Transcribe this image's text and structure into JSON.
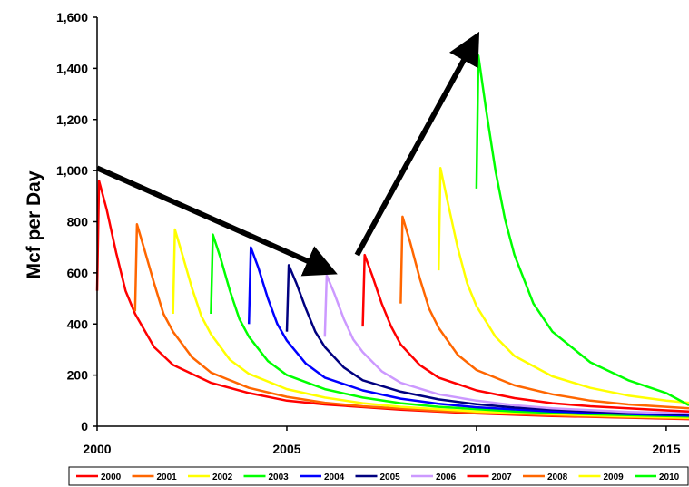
{
  "chart_data": {
    "type": "line",
    "title": "",
    "xlabel": "",
    "ylabel": "Mcf per Day",
    "xlim": [
      2000,
      2015.6
    ],
    "ylim": [
      0,
      1600
    ],
    "x_ticks": [
      2000,
      2005,
      2010,
      2015
    ],
    "x_tick_labels": [
      "2000",
      "2005",
      "2010",
      "2015"
    ],
    "y_ticks": [
      0,
      200,
      400,
      600,
      800,
      1000,
      1200,
      1400,
      1600
    ],
    "y_tick_labels": [
      "0",
      "200",
      "400",
      "600",
      "800",
      "1,000",
      "1,200",
      "1,400",
      "1,600"
    ],
    "grid": false,
    "legend_position": "bottom",
    "x_unit": "years",
    "series": [
      {
        "name": "2000",
        "color": "#ff0000",
        "start_year": 2000.0,
        "x_offset": [
          0,
          0.05,
          0.25,
          0.5,
          0.75,
          1.0,
          1.5,
          2.0,
          3.0,
          4.0,
          5.0,
          6.0,
          8.0,
          10.0,
          12.0,
          15.6
        ],
        "values": [
          530,
          960,
          850,
          680,
          530,
          440,
          310,
          240,
          170,
          130,
          100,
          85,
          65,
          50,
          40,
          28
        ]
      },
      {
        "name": "2001",
        "color": "#ff6600",
        "start_year": 2001.0,
        "x_offset": [
          0,
          0.05,
          0.25,
          0.5,
          0.75,
          1.0,
          1.5,
          2.0,
          3.0,
          4.0,
          5.0,
          6.0,
          8.0,
          10.0,
          12.0,
          14.6
        ],
        "values": [
          450,
          790,
          690,
          560,
          440,
          370,
          270,
          210,
          150,
          115,
          92,
          78,
          60,
          48,
          38,
          30
        ]
      },
      {
        "name": "2002",
        "color": "#ffff00",
        "start_year": 2002.0,
        "x_offset": [
          0,
          0.05,
          0.25,
          0.5,
          0.75,
          1.0,
          1.5,
          2.0,
          3.0,
          4.0,
          5.0,
          6.0,
          8.0,
          10.0,
          12.0,
          13.6
        ],
        "values": [
          440,
          770,
          670,
          540,
          430,
          360,
          260,
          205,
          145,
          112,
          90,
          76,
          58,
          47,
          38,
          33
        ]
      },
      {
        "name": "2003",
        "color": "#00ff00",
        "start_year": 2003.0,
        "x_offset": [
          0,
          0.05,
          0.25,
          0.5,
          0.75,
          1.0,
          1.5,
          2.0,
          3.0,
          4.0,
          5.0,
          6.0,
          8.0,
          10.0,
          12.0,
          12.6
        ],
        "values": [
          440,
          750,
          660,
          530,
          420,
          350,
          255,
          200,
          145,
          112,
          90,
          76,
          58,
          47,
          40,
          38
        ]
      },
      {
        "name": "2004",
        "color": "#0000ff",
        "start_year": 2004.0,
        "x_offset": [
          0,
          0.05,
          0.25,
          0.5,
          0.75,
          1.0,
          1.5,
          2.0,
          3.0,
          4.0,
          5.0,
          6.0,
          8.0,
          10.0,
          11.6
        ],
        "values": [
          400,
          700,
          620,
          500,
          400,
          335,
          245,
          190,
          140,
          108,
          88,
          74,
          58,
          48,
          42
        ]
      },
      {
        "name": "2005",
        "color": "#000080",
        "start_year": 2005.0,
        "x_offset": [
          0,
          0.05,
          0.25,
          0.5,
          0.75,
          1.0,
          1.5,
          2.0,
          3.0,
          4.0,
          5.0,
          6.0,
          8.0,
          10.0,
          10.6
        ],
        "values": [
          370,
          630,
          560,
          460,
          370,
          310,
          230,
          180,
          135,
          105,
          86,
          73,
          58,
          48,
          46
        ]
      },
      {
        "name": "2006",
        "color": "#cc99ff",
        "start_year": 2006.0,
        "x_offset": [
          0,
          0.05,
          0.25,
          0.5,
          0.75,
          1.0,
          1.5,
          2.0,
          3.0,
          4.0,
          5.0,
          6.0,
          8.0,
          9.6
        ],
        "values": [
          350,
          590,
          520,
          420,
          340,
          290,
          215,
          170,
          125,
          100,
          82,
          70,
          56,
          50
        ]
      },
      {
        "name": "2007",
        "color": "#ff0000",
        "start_year": 2007.0,
        "x_offset": [
          0,
          0.05,
          0.25,
          0.5,
          0.75,
          1.0,
          1.5,
          2.0,
          3.0,
          4.0,
          5.0,
          6.0,
          8.0,
          8.6
        ],
        "values": [
          390,
          670,
          590,
          480,
          390,
          320,
          240,
          190,
          140,
          110,
          90,
          78,
          62,
          58
        ]
      },
      {
        "name": "2008",
        "color": "#ff6600",
        "start_year": 2008.0,
        "x_offset": [
          0,
          0.05,
          0.25,
          0.5,
          0.75,
          1.0,
          1.5,
          2.0,
          3.0,
          4.0,
          5.0,
          6.0,
          7.6
        ],
        "values": [
          480,
          820,
          720,
          580,
          460,
          385,
          280,
          220,
          160,
          125,
          100,
          85,
          70
        ]
      },
      {
        "name": "2009",
        "color": "#ffff00",
        "start_year": 2009.0,
        "x_offset": [
          0,
          0.05,
          0.25,
          0.5,
          0.75,
          1.0,
          1.5,
          2.0,
          3.0,
          4.0,
          5.0,
          6.0,
          6.6
        ],
        "values": [
          610,
          1010,
          870,
          700,
          560,
          470,
          350,
          275,
          195,
          150,
          120,
          100,
          92
        ]
      },
      {
        "name": "2010",
        "color": "#00ff00",
        "start_year": 2010.0,
        "x_offset": [
          0,
          0.05,
          0.25,
          0.5,
          0.75,
          1.0,
          1.5,
          2.0,
          3.0,
          4.0,
          5.0,
          5.6
        ],
        "values": [
          930,
          1450,
          1240,
          1000,
          810,
          670,
          480,
          370,
          250,
          180,
          130,
          82
        ]
      }
    ],
    "annotations": [
      {
        "type": "arrow",
        "from": {
          "x": 2000.0,
          "y": 1010
        },
        "to": {
          "x": 2006.1,
          "y": 610
        }
      },
      {
        "type": "arrow",
        "from": {
          "x": 2006.85,
          "y": 670
        },
        "to": {
          "x": 2009.95,
          "y": 1510
        }
      }
    ]
  }
}
